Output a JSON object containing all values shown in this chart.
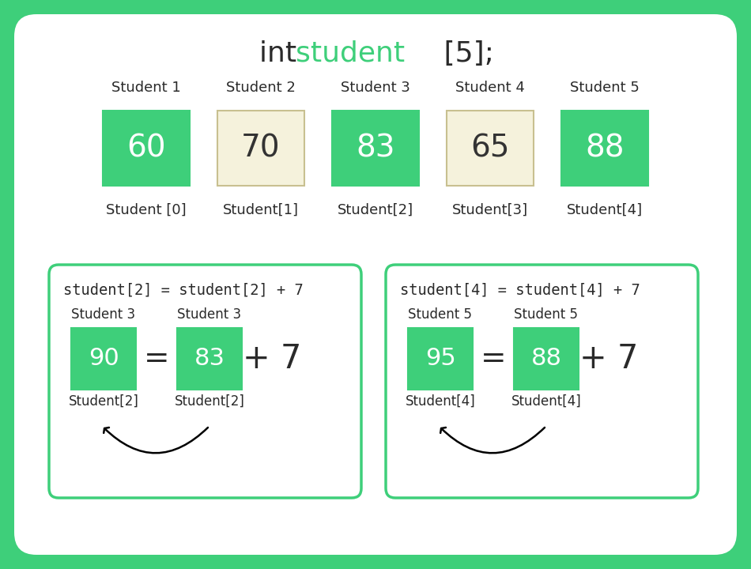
{
  "bg_color": "#3ecf7a",
  "white_bg": "#ffffff",
  "green_box": "#3ecf7a",
  "cream_box": "#f5f2dc",
  "cream_border": "#c8c090",
  "green_text": "#3ecf7a",
  "dark_text": "#2a2a2a",
  "students_top": [
    "Student 1",
    "Student 2",
    "Student 3",
    "Student 4",
    "Student 5"
  ],
  "students_bottom": [
    "Student [0]",
    "Student[1]",
    "Student[2]",
    "Student[3]",
    "Student[4]"
  ],
  "values": [
    60,
    70,
    83,
    65,
    88
  ],
  "box_colors": [
    "#3ecf7a",
    "#f5f2dc",
    "#3ecf7a",
    "#f5f2dc",
    "#3ecf7a"
  ],
  "box_text_colors": [
    "#ffffff",
    "#333333",
    "#ffffff",
    "#333333",
    "#ffffff"
  ],
  "box_border_colors": [
    "#3ecf7a",
    "#c8c090",
    "#3ecf7a",
    "#c8c090",
    "#3ecf7a"
  ],
  "panel1_title": "student[2] = student[2] + 7",
  "panel2_title": "student[4] = student[4] + 7",
  "panel1_left_label": "Student 3",
  "panel1_right_label": "Student 3",
  "panel2_left_label": "Student 5",
  "panel2_right_label": "Student 5",
  "panel1_left_val": "90",
  "panel1_right_val": "83",
  "panel2_left_val": "95",
  "panel2_right_val": "88",
  "panel1_left_bottom": "Student[2]",
  "panel1_right_bottom": "Student[2]",
  "panel2_left_bottom": "Student[4]",
  "panel2_right_bottom": "Student[4]"
}
